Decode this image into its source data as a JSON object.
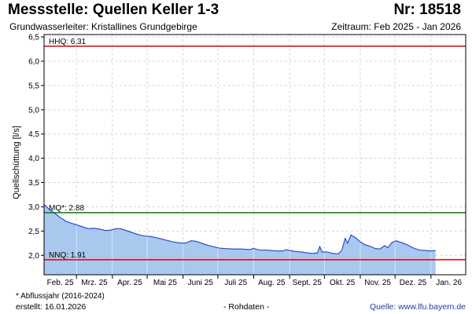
{
  "header": {
    "title": "Messstelle: Quellen Keller 1-3",
    "station_nr": "Nr: 18518",
    "subtitle": "Grundwasserleiter: Kristallines Grundgebirge",
    "period": "Zeitraum: Feb 2025 - Jan 2026"
  },
  "footer": {
    "footnote": "* Abflussjahr (2016-2024)",
    "created": "erstellt:  16.01.2026",
    "rawdata": "- Rohdaten -",
    "source": "Quelle:  www.lfu.bayern.de"
  },
  "chart_data": {
    "type": "area",
    "ylabel": "Quellschüttung [l/s]",
    "ylim": [
      1.6,
      6.55
    ],
    "yticks": [
      2.0,
      2.5,
      3.0,
      3.5,
      4.0,
      4.5,
      5.0,
      5.5,
      6.0,
      6.5
    ],
    "ytick_labels": [
      "2,0",
      "2,5",
      "3,0",
      "3,5",
      "4,0",
      "4,5",
      "5,0",
      "5,5",
      "6,0",
      "6,5"
    ],
    "x_range": [
      "2025-02-01",
      "2026-01-31"
    ],
    "month_labels": [
      "Feb. 25",
      "Mrz. 25",
      "Apr. 25",
      "Mai 25",
      "Juni 25",
      "Juli 25",
      "Aug. 25",
      "Sept. 25",
      "Okt. 25",
      "Nov. 25",
      "Dez. 25",
      "Jan. 26"
    ],
    "grid": true,
    "fill_color": "#a9c8ee",
    "line_color": "#1f3fd6",
    "reference_lines": [
      {
        "label": "HHQ: 6.31",
        "value": 6.31,
        "color": "#e00000"
      },
      {
        "label": "MQ*: 2.88",
        "value": 2.88,
        "color": "#008000"
      },
      {
        "label": "NNQ: 1.91",
        "value": 1.91,
        "color": "#e00000"
      }
    ],
    "series": [
      {
        "values": [
          [
            "2025-02-01",
            3.05
          ],
          [
            "2025-02-05",
            2.96
          ],
          [
            "2025-02-10",
            2.87
          ],
          [
            "2025-02-15",
            2.78
          ],
          [
            "2025-02-20",
            2.7
          ],
          [
            "2025-02-25",
            2.66
          ],
          [
            "2025-03-01",
            2.63
          ],
          [
            "2025-03-06",
            2.59
          ],
          [
            "2025-03-11",
            2.55
          ],
          [
            "2025-03-16",
            2.56
          ],
          [
            "2025-03-21",
            2.54
          ],
          [
            "2025-03-26",
            2.51
          ],
          [
            "2025-03-31",
            2.52
          ],
          [
            "2025-04-04",
            2.55
          ],
          [
            "2025-04-08",
            2.55
          ],
          [
            "2025-04-13",
            2.51
          ],
          [
            "2025-04-18",
            2.47
          ],
          [
            "2025-04-23",
            2.43
          ],
          [
            "2025-04-28",
            2.4
          ],
          [
            "2025-05-03",
            2.39
          ],
          [
            "2025-05-08",
            2.37
          ],
          [
            "2025-05-13",
            2.34
          ],
          [
            "2025-05-18",
            2.31
          ],
          [
            "2025-05-23",
            2.28
          ],
          [
            "2025-05-28",
            2.26
          ],
          [
            "2025-06-01",
            2.25
          ],
          [
            "2025-06-04",
            2.26
          ],
          [
            "2025-06-08",
            2.3
          ],
          [
            "2025-06-12",
            2.29
          ],
          [
            "2025-06-17",
            2.25
          ],
          [
            "2025-06-22",
            2.21
          ],
          [
            "2025-06-27",
            2.18
          ],
          [
            "2025-07-02",
            2.15
          ],
          [
            "2025-07-07",
            2.14
          ],
          [
            "2025-07-14",
            2.13
          ],
          [
            "2025-07-21",
            2.13
          ],
          [
            "2025-07-28",
            2.12
          ],
          [
            "2025-08-01",
            2.14
          ],
          [
            "2025-08-06",
            2.11
          ],
          [
            "2025-08-11",
            2.11
          ],
          [
            "2025-08-16",
            2.1
          ],
          [
            "2025-08-21",
            2.09
          ],
          [
            "2025-08-26",
            2.09
          ],
          [
            "2025-08-29",
            2.12
          ],
          [
            "2025-09-01",
            2.1
          ],
          [
            "2025-09-06",
            2.08
          ],
          [
            "2025-09-11",
            2.07
          ],
          [
            "2025-09-16",
            2.05
          ],
          [
            "2025-09-21",
            2.04
          ],
          [
            "2025-09-25",
            2.05
          ],
          [
            "2025-09-27",
            2.18
          ],
          [
            "2025-09-29",
            2.07
          ],
          [
            "2025-10-03",
            2.07
          ],
          [
            "2025-10-08",
            2.04
          ],
          [
            "2025-10-13",
            2.03
          ],
          [
            "2025-10-16",
            2.1
          ],
          [
            "2025-10-19",
            2.35
          ],
          [
            "2025-10-21",
            2.25
          ],
          [
            "2025-10-24",
            2.42
          ],
          [
            "2025-10-28",
            2.36
          ],
          [
            "2025-11-01",
            2.28
          ],
          [
            "2025-11-05",
            2.22
          ],
          [
            "2025-11-10",
            2.18
          ],
          [
            "2025-11-14",
            2.14
          ],
          [
            "2025-11-18",
            2.13
          ],
          [
            "2025-11-22",
            2.2
          ],
          [
            "2025-11-25",
            2.16
          ],
          [
            "2025-11-28",
            2.26
          ],
          [
            "2025-12-02",
            2.3
          ],
          [
            "2025-12-07",
            2.26
          ],
          [
            "2025-12-12",
            2.21
          ],
          [
            "2025-12-17",
            2.15
          ],
          [
            "2025-12-22",
            2.11
          ],
          [
            "2025-12-27",
            2.1
          ],
          [
            "2026-01-01",
            2.09
          ],
          [
            "2026-01-05",
            2.1
          ]
        ]
      }
    ]
  }
}
